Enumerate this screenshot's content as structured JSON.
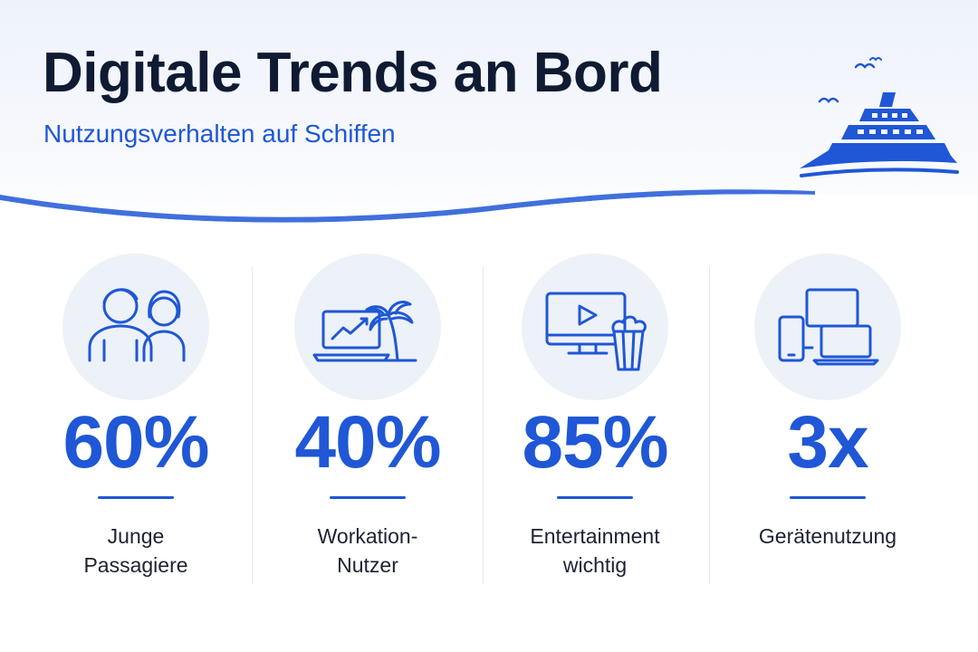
{
  "header": {
    "title": "Digitale Trends an Bord",
    "subtitle": "Nutzungsverhalten auf Schiffen",
    "illustration": "cruise-ship-icon"
  },
  "colors": {
    "accent": "#1f57d6",
    "title": "#0f1a33",
    "circle_bg": "#edf1f8",
    "text": "#1c2233"
  },
  "stats": [
    {
      "icon": "young-passengers-icon",
      "value": "60%",
      "label_lines": [
        "Junge",
        "Passagiere"
      ]
    },
    {
      "icon": "laptop-palm-icon",
      "value": "40%",
      "label_lines": [
        "Workation-",
        "Nutzer"
      ]
    },
    {
      "icon": "tv-popcorn-icon",
      "value": "85%",
      "label_lines": [
        "Entertainment",
        "wichtig"
      ]
    },
    {
      "icon": "devices-icon",
      "value": "3x",
      "label_lines": [
        "Gerätenutzung"
      ]
    }
  ]
}
